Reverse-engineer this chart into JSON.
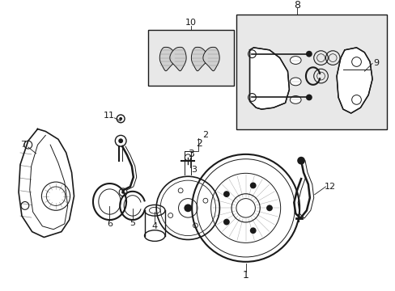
{
  "bg_color": "#ffffff",
  "line_color": "#1a1a1a",
  "gray_fill": "#e8e8e8",
  "figsize": [
    4.89,
    3.6
  ],
  "dpi": 100,
  "xlim": [
    0,
    489
  ],
  "ylim": [
    0,
    360
  ]
}
